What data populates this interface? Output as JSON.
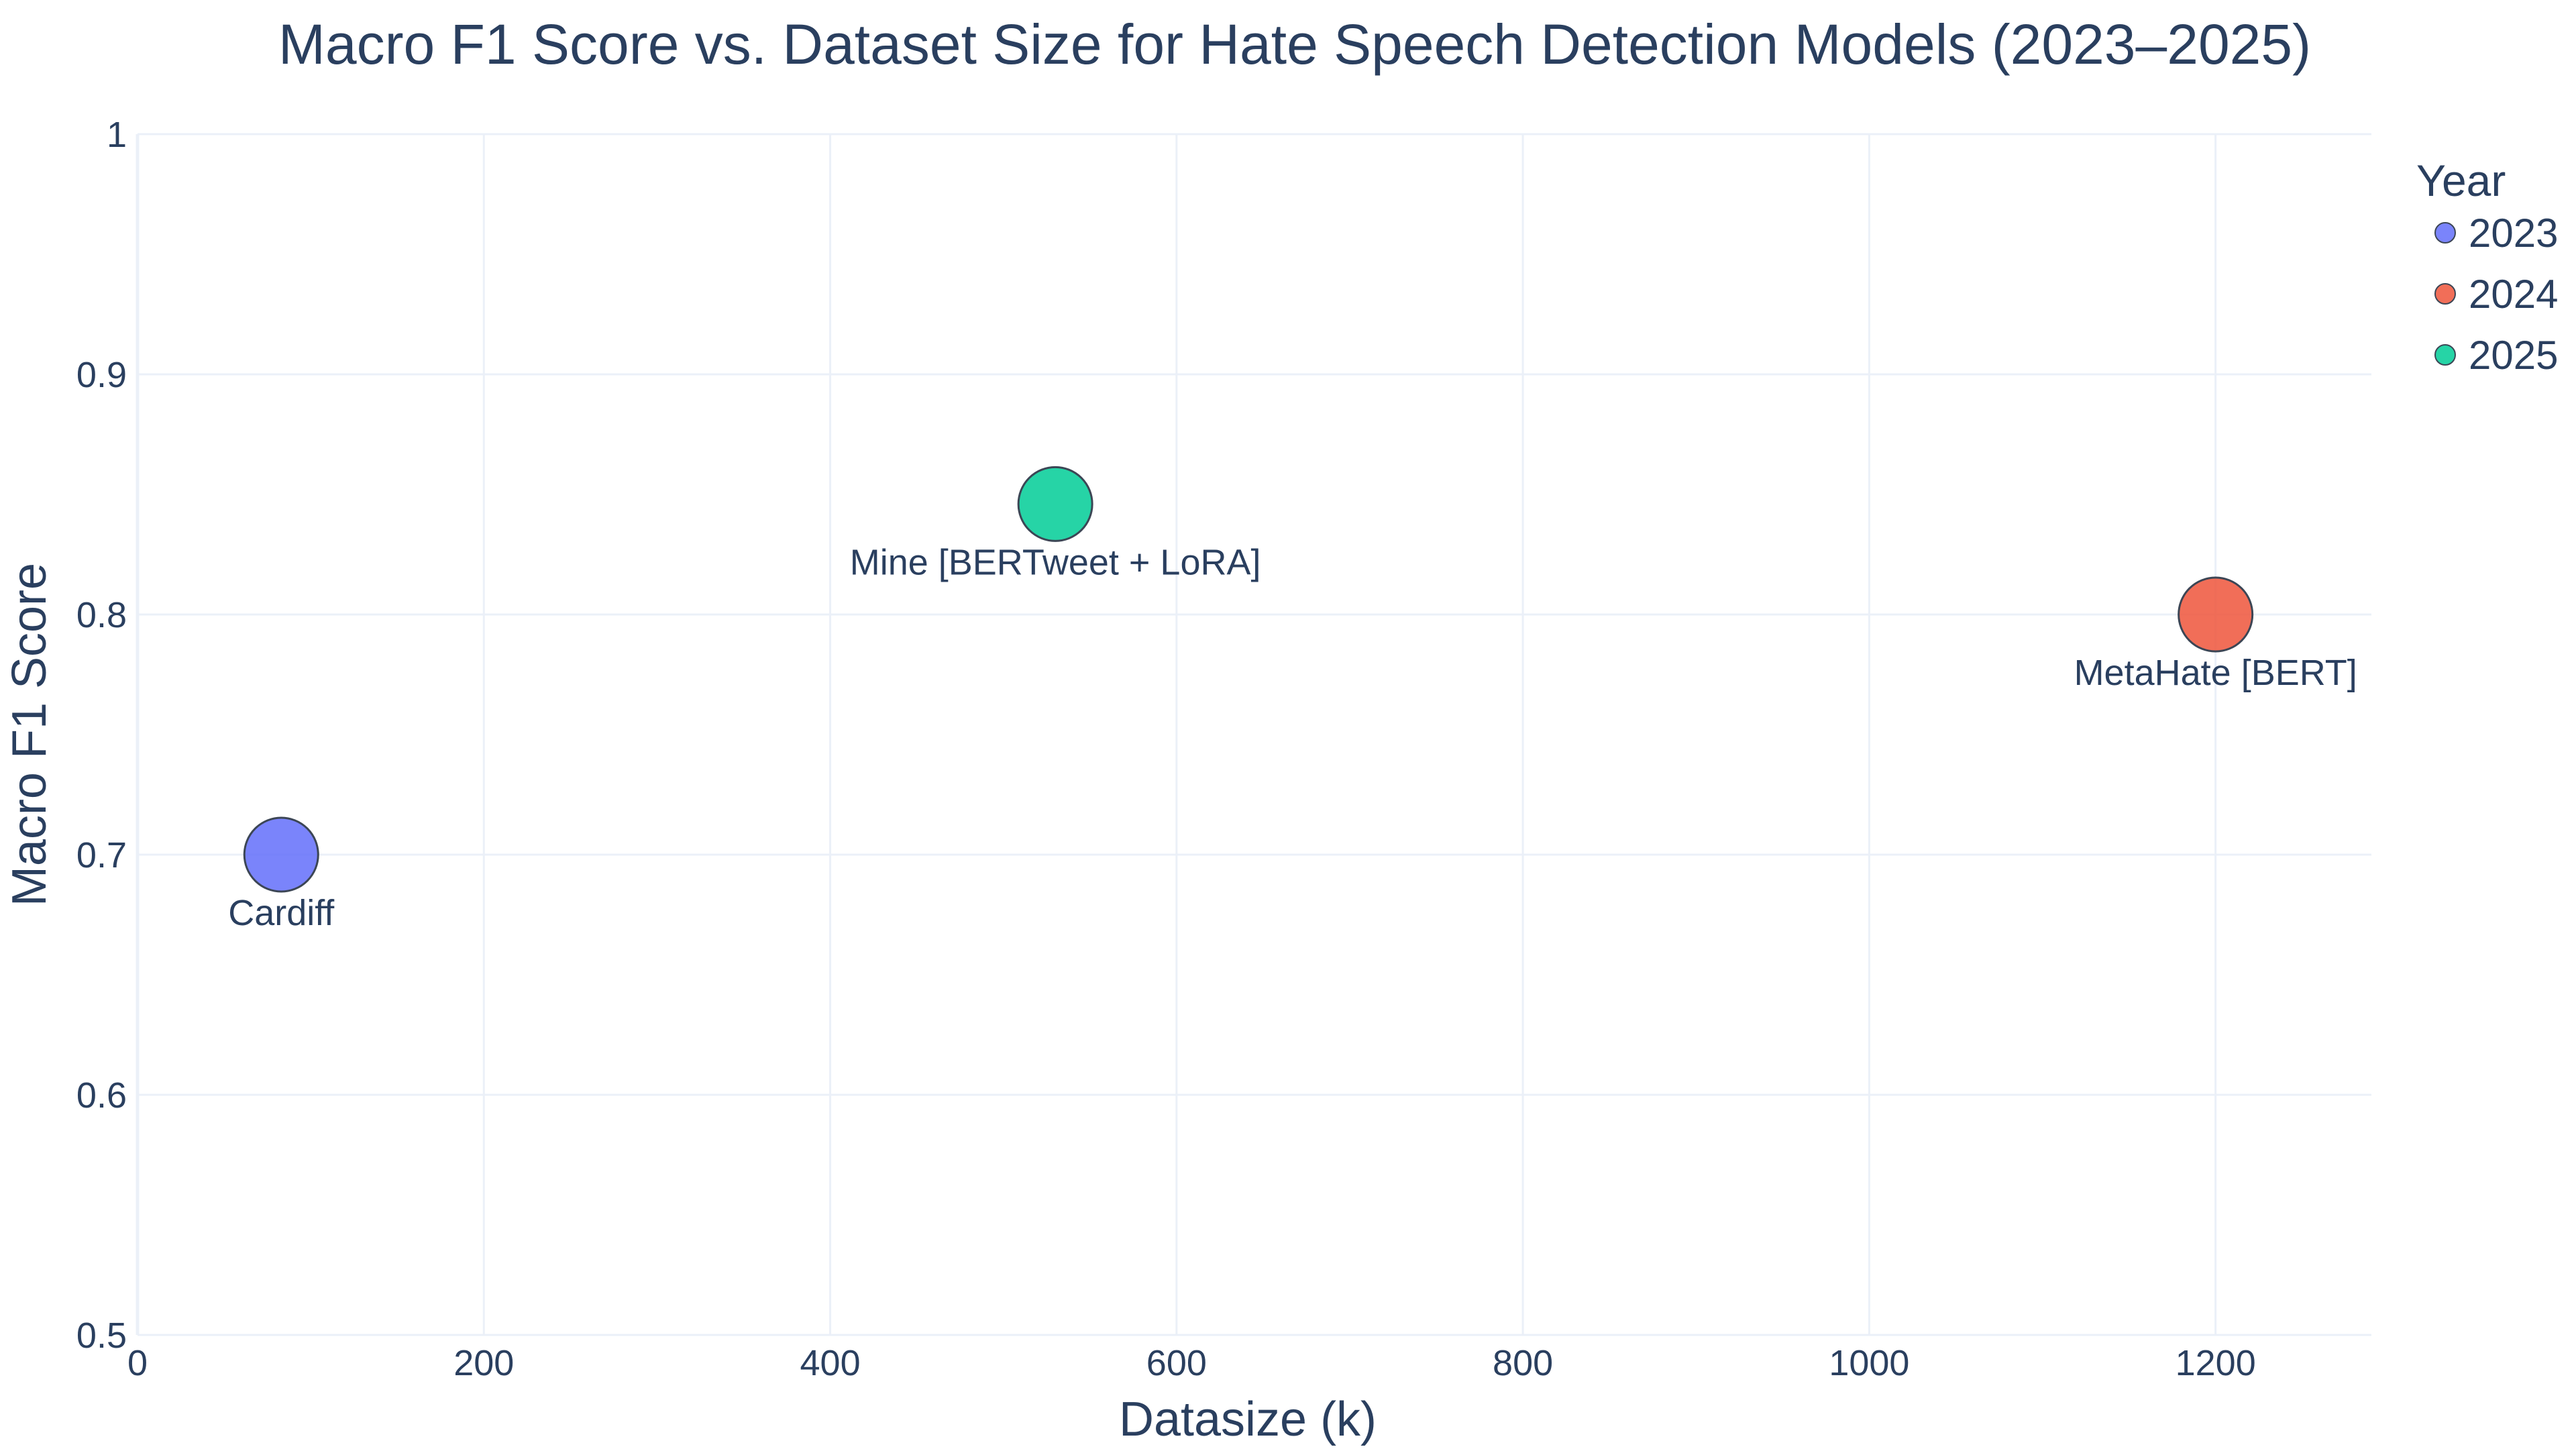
{
  "chart_data": {
    "type": "scatter",
    "title": "Macro F1 Score vs. Dataset Size for Hate Speech Detection Models (2023–2025)",
    "xlabel": "Datasize (k)",
    "ylabel": "Macro F1 Score",
    "xlim": [
      0,
      1290
    ],
    "ylim": [
      0.5,
      1.0
    ],
    "x_ticks": [
      "0",
      "200",
      "400",
      "600",
      "800",
      "1000",
      "1200"
    ],
    "x_tick_values": [
      0,
      200,
      400,
      600,
      800,
      1000,
      1200
    ],
    "y_ticks": [
      "0.5",
      "0.6",
      "0.7",
      "0.8",
      "0.9",
      "1"
    ],
    "y_tick_values": [
      0.5,
      0.6,
      0.7,
      0.8,
      0.9,
      1.0
    ],
    "grid": true,
    "legend": {
      "title": "Year",
      "position": "top-right"
    },
    "series": [
      {
        "name": "2023",
        "color": "#636efa",
        "points": [
          {
            "x": 83,
            "y": 0.7,
            "label": "Cardiff"
          }
        ]
      },
      {
        "name": "2024",
        "color": "#ef553b",
        "points": [
          {
            "x": 1200,
            "y": 0.8,
            "label": "MetaHate [BERT]"
          }
        ]
      },
      {
        "name": "2025",
        "color": "#00cc96",
        "points": [
          {
            "x": 530,
            "y": 0.846,
            "label": "Mine [BERTweet + LoRA]"
          }
        ]
      }
    ]
  }
}
